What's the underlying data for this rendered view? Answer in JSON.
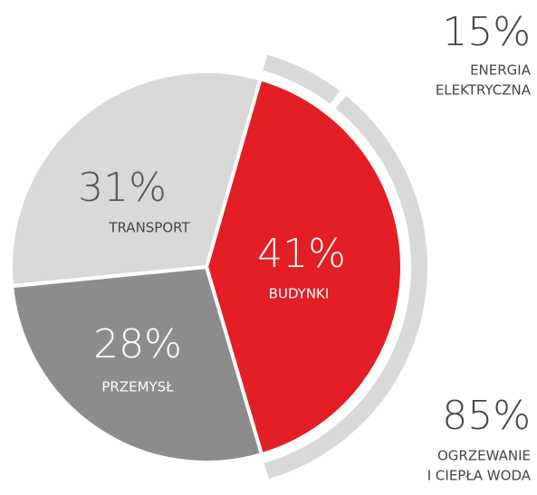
{
  "chart_data": {
    "type": "pie",
    "categories": [
      "BUDYNKI",
      "PRZEMYSŁ",
      "TRANSPORT"
    ],
    "values": [
      41,
      28,
      31
    ],
    "value_labels": [
      "41%",
      "28%",
      "31%"
    ],
    "colors": [
      "#e31e24",
      "#8c8c8c",
      "#d9d9d9"
    ],
    "breakdown": {
      "categories": [
        [
          "ENERGIA",
          "ELEKTRYCZNA"
        ],
        [
          "OGRZEWANIE",
          "I CIEPŁA WODA"
        ]
      ],
      "values": [
        15,
        85
      ],
      "value_labels": [
        "15%",
        "85%"
      ],
      "color": "#d9d9d9"
    }
  }
}
